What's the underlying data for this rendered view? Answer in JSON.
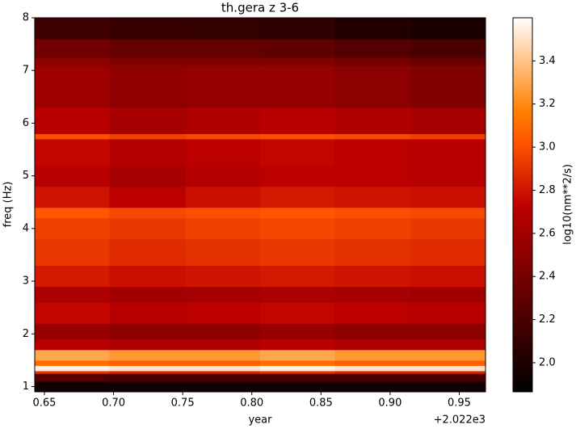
{
  "chart_data": {
    "type": "heatmap",
    "title": "th.gera z 3-6",
    "x_label": "year",
    "y_label": "freq (Hz)",
    "x_offset_label": "+2.022e3",
    "colorbar_label": "log10(nm**2/s)",
    "colormap": "gist_heat",
    "x_edges": [
      0.643,
      0.697,
      0.752,
      0.806,
      0.86,
      0.915,
      0.969
    ],
    "y_edges": [
      0.9,
      1.1,
      1.25,
      1.3,
      1.4,
      1.5,
      1.7,
      1.9,
      2.2,
      2.6,
      2.9,
      3.3,
      3.8,
      4.2,
      4.4,
      4.8,
      5.2,
      5.7,
      5.8,
      6.3,
      7.1,
      7.25,
      7.6,
      8.0
    ],
    "values": [
      [
        1.95,
        1.95,
        1.95,
        1.95,
        1.95,
        1.95
      ],
      [
        2.25,
        2.2,
        2.2,
        2.2,
        2.2,
        2.2
      ],
      [
        2.9,
        2.85,
        2.85,
        2.9,
        2.85,
        2.85
      ],
      [
        3.55,
        3.5,
        3.5,
        3.55,
        3.5,
        3.5
      ],
      [
        3.1,
        3.05,
        3.05,
        3.1,
        3.05,
        3.05
      ],
      [
        3.3,
        3.25,
        3.25,
        3.3,
        3.25,
        3.25
      ],
      [
        2.7,
        2.65,
        2.65,
        2.7,
        2.65,
        2.65
      ],
      [
        2.55,
        2.5,
        2.5,
        2.55,
        2.5,
        2.5
      ],
      [
        2.75,
        2.7,
        2.72,
        2.75,
        2.72,
        2.7
      ],
      [
        2.65,
        2.6,
        2.62,
        2.65,
        2.62,
        2.6
      ],
      [
        2.82,
        2.78,
        2.8,
        2.82,
        2.8,
        2.78
      ],
      [
        2.92,
        2.88,
        2.9,
        2.92,
        2.9,
        2.88
      ],
      [
        2.95,
        2.92,
        2.95,
        2.97,
        2.95,
        2.92
      ],
      [
        3.02,
        2.98,
        3.0,
        3.02,
        3.0,
        2.98
      ],
      [
        2.8,
        2.72,
        2.78,
        2.82,
        2.8,
        2.78
      ],
      [
        2.7,
        2.62,
        2.68,
        2.72,
        2.72,
        2.7
      ],
      [
        2.75,
        2.68,
        2.72,
        2.75,
        2.72,
        2.7
      ],
      [
        3.0,
        2.95,
        2.98,
        3.0,
        2.98,
        2.95
      ],
      [
        2.7,
        2.62,
        2.66,
        2.7,
        2.66,
        2.62
      ],
      [
        2.58,
        2.52,
        2.55,
        2.55,
        2.5,
        2.45
      ],
      [
        2.5,
        2.45,
        2.45,
        2.45,
        2.4,
        2.35
      ],
      [
        2.38,
        2.32,
        2.32,
        2.3,
        2.25,
        2.2
      ],
      [
        2.15,
        2.12,
        2.1,
        2.08,
        2.02,
        1.98
      ]
    ],
    "xlim": [
      0.643,
      0.969
    ],
    "ylim": [
      0.9,
      8
    ],
    "xticks": [
      0.65,
      {
        "value": 0.7,
        "label": "0.70"
      },
      0.75,
      {
        "value": 0.8,
        "label": "0.80"
      },
      0.85,
      {
        "value": 0.9,
        "label": "0.90"
      },
      0.95
    ],
    "yticks": [
      1,
      2,
      3,
      4,
      5,
      6,
      7,
      8
    ],
    "clim": [
      1.865,
      3.6
    ],
    "cticks": [
      {
        "value": 2,
        "label": "2.0"
      },
      2.2,
      2.4,
      2.6,
      2.8,
      {
        "value": 3,
        "label": "3.0"
      },
      3.2,
      3.4
    ]
  }
}
